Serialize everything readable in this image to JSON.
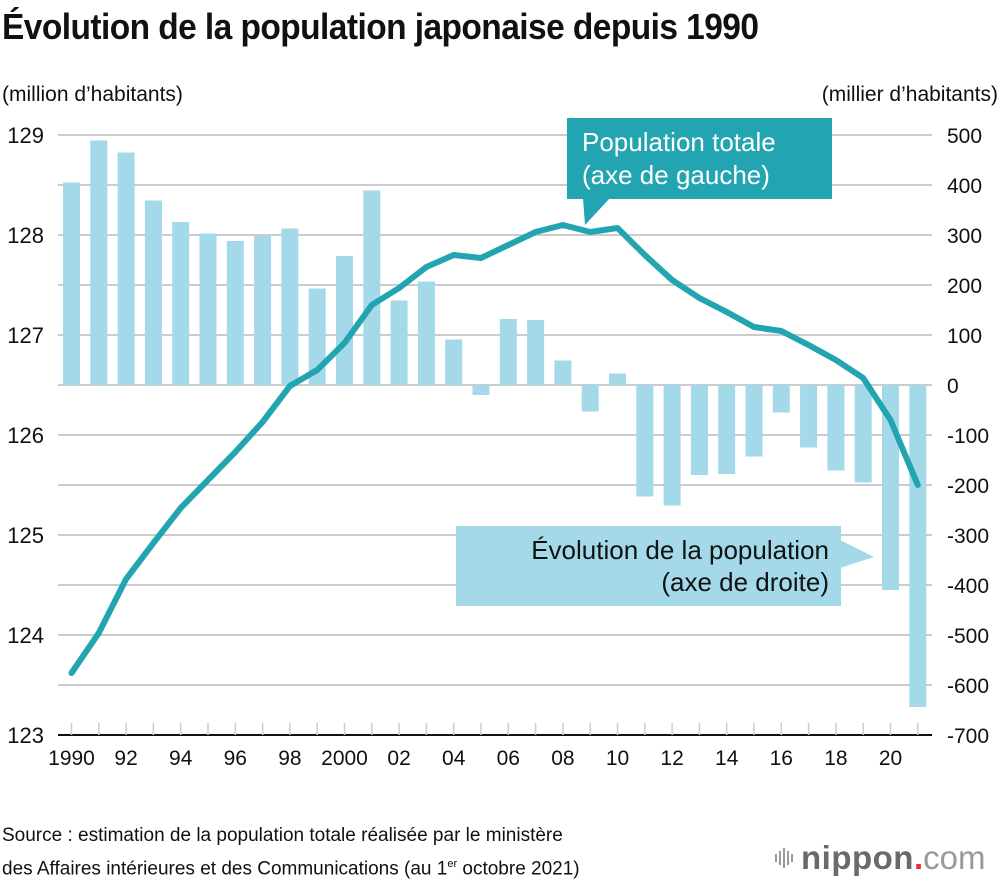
{
  "title": "Évolution de la population japonaise depuis 1990",
  "left_unit": "(million d’habitants)",
  "right_unit": "(millier d’habitants)",
  "source": {
    "line1": "Source : estimation de la population totale réalisée par le ministère",
    "line2_before": "des Affaires intérieures et des Communications (au 1",
    "line2_sup": "er",
    "line2_after": " octobre 2021)"
  },
  "logo": {
    "name": "nippon",
    "dot": ".",
    "tld": "com",
    "icon": "sound-bars-icon"
  },
  "colors": {
    "line": "#22a5b1",
    "bars": "#a3d9e9",
    "grid": "#cccccc",
    "axis": "#111111"
  },
  "chart_data": {
    "type": "bar+line",
    "title": "Évolution de la population japonaise depuis 1990",
    "x": [
      1990,
      1991,
      1992,
      1993,
      1994,
      1995,
      1996,
      1997,
      1998,
      1999,
      2000,
      2001,
      2002,
      2003,
      2004,
      2005,
      2006,
      2007,
      2008,
      2009,
      2010,
      2011,
      2012,
      2013,
      2014,
      2015,
      2016,
      2017,
      2018,
      2019,
      2020,
      2021
    ],
    "x_tick_labels": [
      "1990",
      "92",
      "94",
      "96",
      "98",
      "2000",
      "02",
      "04",
      "06",
      "08",
      "10",
      "12",
      "14",
      "16",
      "18",
      "20"
    ],
    "x_tick_label_years": [
      1990,
      1992,
      1994,
      1996,
      1998,
      2000,
      2002,
      2004,
      2006,
      2008,
      2010,
      2012,
      2014,
      2016,
      2018,
      2020
    ],
    "series": [
      {
        "name": "Population totale",
        "type": "line",
        "axis": "left",
        "annotation": [
          "Population totale",
          "(axe de gauche)"
        ],
        "values": [
          123.62,
          124.02,
          124.56,
          124.92,
          125.27,
          125.55,
          125.83,
          126.13,
          126.49,
          126.65,
          126.92,
          127.3,
          127.47,
          127.68,
          127.8,
          127.77,
          127.9,
          128.03,
          128.1,
          128.03,
          128.07,
          127.8,
          127.55,
          127.37,
          127.23,
          127.08,
          127.04,
          126.9,
          126.75,
          126.57,
          126.15,
          125.5
        ]
      },
      {
        "name": "Évolution de la population",
        "type": "bar",
        "axis": "right",
        "annotation": [
          "Évolution de la population",
          "(axe de droite)"
        ],
        "values": [
          405,
          489,
          465,
          369,
          326,
          303,
          288,
          298,
          313,
          193,
          258,
          389,
          169,
          207,
          91,
          -20,
          132,
          130,
          49,
          -53,
          23,
          -223,
          -241,
          -180,
          -178,
          -143,
          -55,
          -125,
          -171,
          -195,
          -410,
          -644
        ]
      }
    ],
    "y_left": {
      "label": "(million d’habitants)",
      "range": [
        123,
        129
      ],
      "ticks": [
        129,
        128,
        127,
        126,
        125,
        124,
        123
      ]
    },
    "y_right": {
      "label": "(millier d’habitants)",
      "range": [
        -700,
        500
      ],
      "ticks": [
        500,
        400,
        300,
        200,
        100,
        0,
        -100,
        -200,
        -300,
        -400,
        -500,
        -600,
        -700
      ]
    },
    "grid": true,
    "legend": "annotations"
  }
}
